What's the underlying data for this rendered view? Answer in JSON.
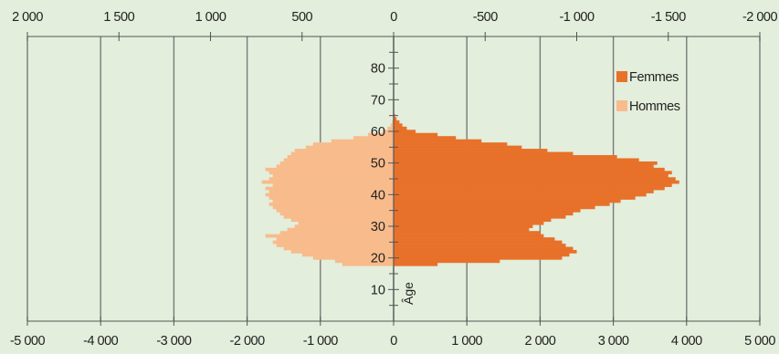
{
  "chart_data": {
    "type": "bar",
    "title": "",
    "orientation": "horizontal",
    "layout": "population-pyramid",
    "bottom_axis": {
      "range": [
        -5000,
        5000
      ],
      "ticks": [
        -5000,
        -4000,
        -3000,
        -2000,
        -1000,
        0,
        1000,
        2000,
        3000,
        4000,
        5000
      ],
      "tick_labels": [
        "-5 000",
        "-4 000",
        "-3 000",
        "-2 000",
        "-1 000",
        "0",
        "1 000",
        "2 000",
        "3 000",
        "4 000",
        "5 000"
      ]
    },
    "top_axis": {
      "range": [
        2000,
        -2000
      ],
      "ticks": [
        2000,
        1500,
        1000,
        500,
        0,
        -500,
        -1000,
        -1500,
        -2000
      ],
      "tick_labels": [
        "2 000",
        "1 500",
        "1 000",
        "500",
        "0",
        "-500",
        "-1 000",
        "-1 500",
        "-2 000"
      ]
    },
    "age_axis": {
      "label": "Âge",
      "range": [
        0,
        90
      ],
      "ticks": [
        10,
        20,
        30,
        40,
        50,
        60,
        70,
        80
      ],
      "tick_labels": [
        "10",
        "20",
        "30",
        "40",
        "50",
        "60",
        "70",
        "80"
      ]
    },
    "ages": [
      18,
      19,
      20,
      21,
      22,
      23,
      24,
      25,
      26,
      27,
      28,
      29,
      30,
      31,
      32,
      33,
      34,
      35,
      36,
      37,
      38,
      39,
      40,
      41,
      42,
      43,
      44,
      45,
      46,
      47,
      48,
      49,
      50,
      51,
      52,
      53,
      54,
      55,
      56,
      57,
      58,
      59,
      60,
      61,
      62,
      63,
      64,
      65
    ],
    "series": [
      {
        "name": "Hommes",
        "color": "#f8bb8b",
        "values": [
          -700,
          -800,
          -1100,
          -1250,
          -1400,
          -1500,
          -1600,
          -1650,
          -1600,
          -1750,
          -1550,
          -1450,
          -1350,
          -1300,
          -1400,
          -1500,
          -1550,
          -1600,
          -1650,
          -1700,
          -1650,
          -1700,
          -1750,
          -1700,
          -1750,
          -1650,
          -1800,
          -1700,
          -1650,
          -1700,
          -1750,
          -1600,
          -1550,
          -1500,
          -1450,
          -1400,
          -1350,
          -1200,
          -1100,
          -850,
          -550,
          -350,
          -150,
          -80,
          -40,
          -20,
          -10,
          -5
        ]
      },
      {
        "name": "Femmes",
        "color": "#e8712a",
        "values": [
          600,
          1450,
          2300,
          2400,
          2500,
          2450,
          2350,
          2300,
          2200,
          2050,
          2000,
          1850,
          1900,
          2050,
          2150,
          2350,
          2450,
          2550,
          2750,
          2950,
          3100,
          3300,
          3450,
          3550,
          3700,
          3800,
          3900,
          3850,
          3750,
          3800,
          3700,
          3550,
          3600,
          3350,
          3050,
          2450,
          2100,
          1750,
          1550,
          1200,
          850,
          600,
          300,
          180,
          120,
          80,
          40,
          20
        ]
      }
    ],
    "legend": {
      "position": "top-right",
      "items": [
        {
          "label": "Femmes",
          "color": "#e8712a"
        },
        {
          "label": "Hommes",
          "color": "#f8bb8b"
        }
      ]
    },
    "colors": {
      "background": "#e3eedc",
      "gridline": "#7a7a7a",
      "axis": "#555555",
      "text": "#222222"
    },
    "grid": true
  }
}
